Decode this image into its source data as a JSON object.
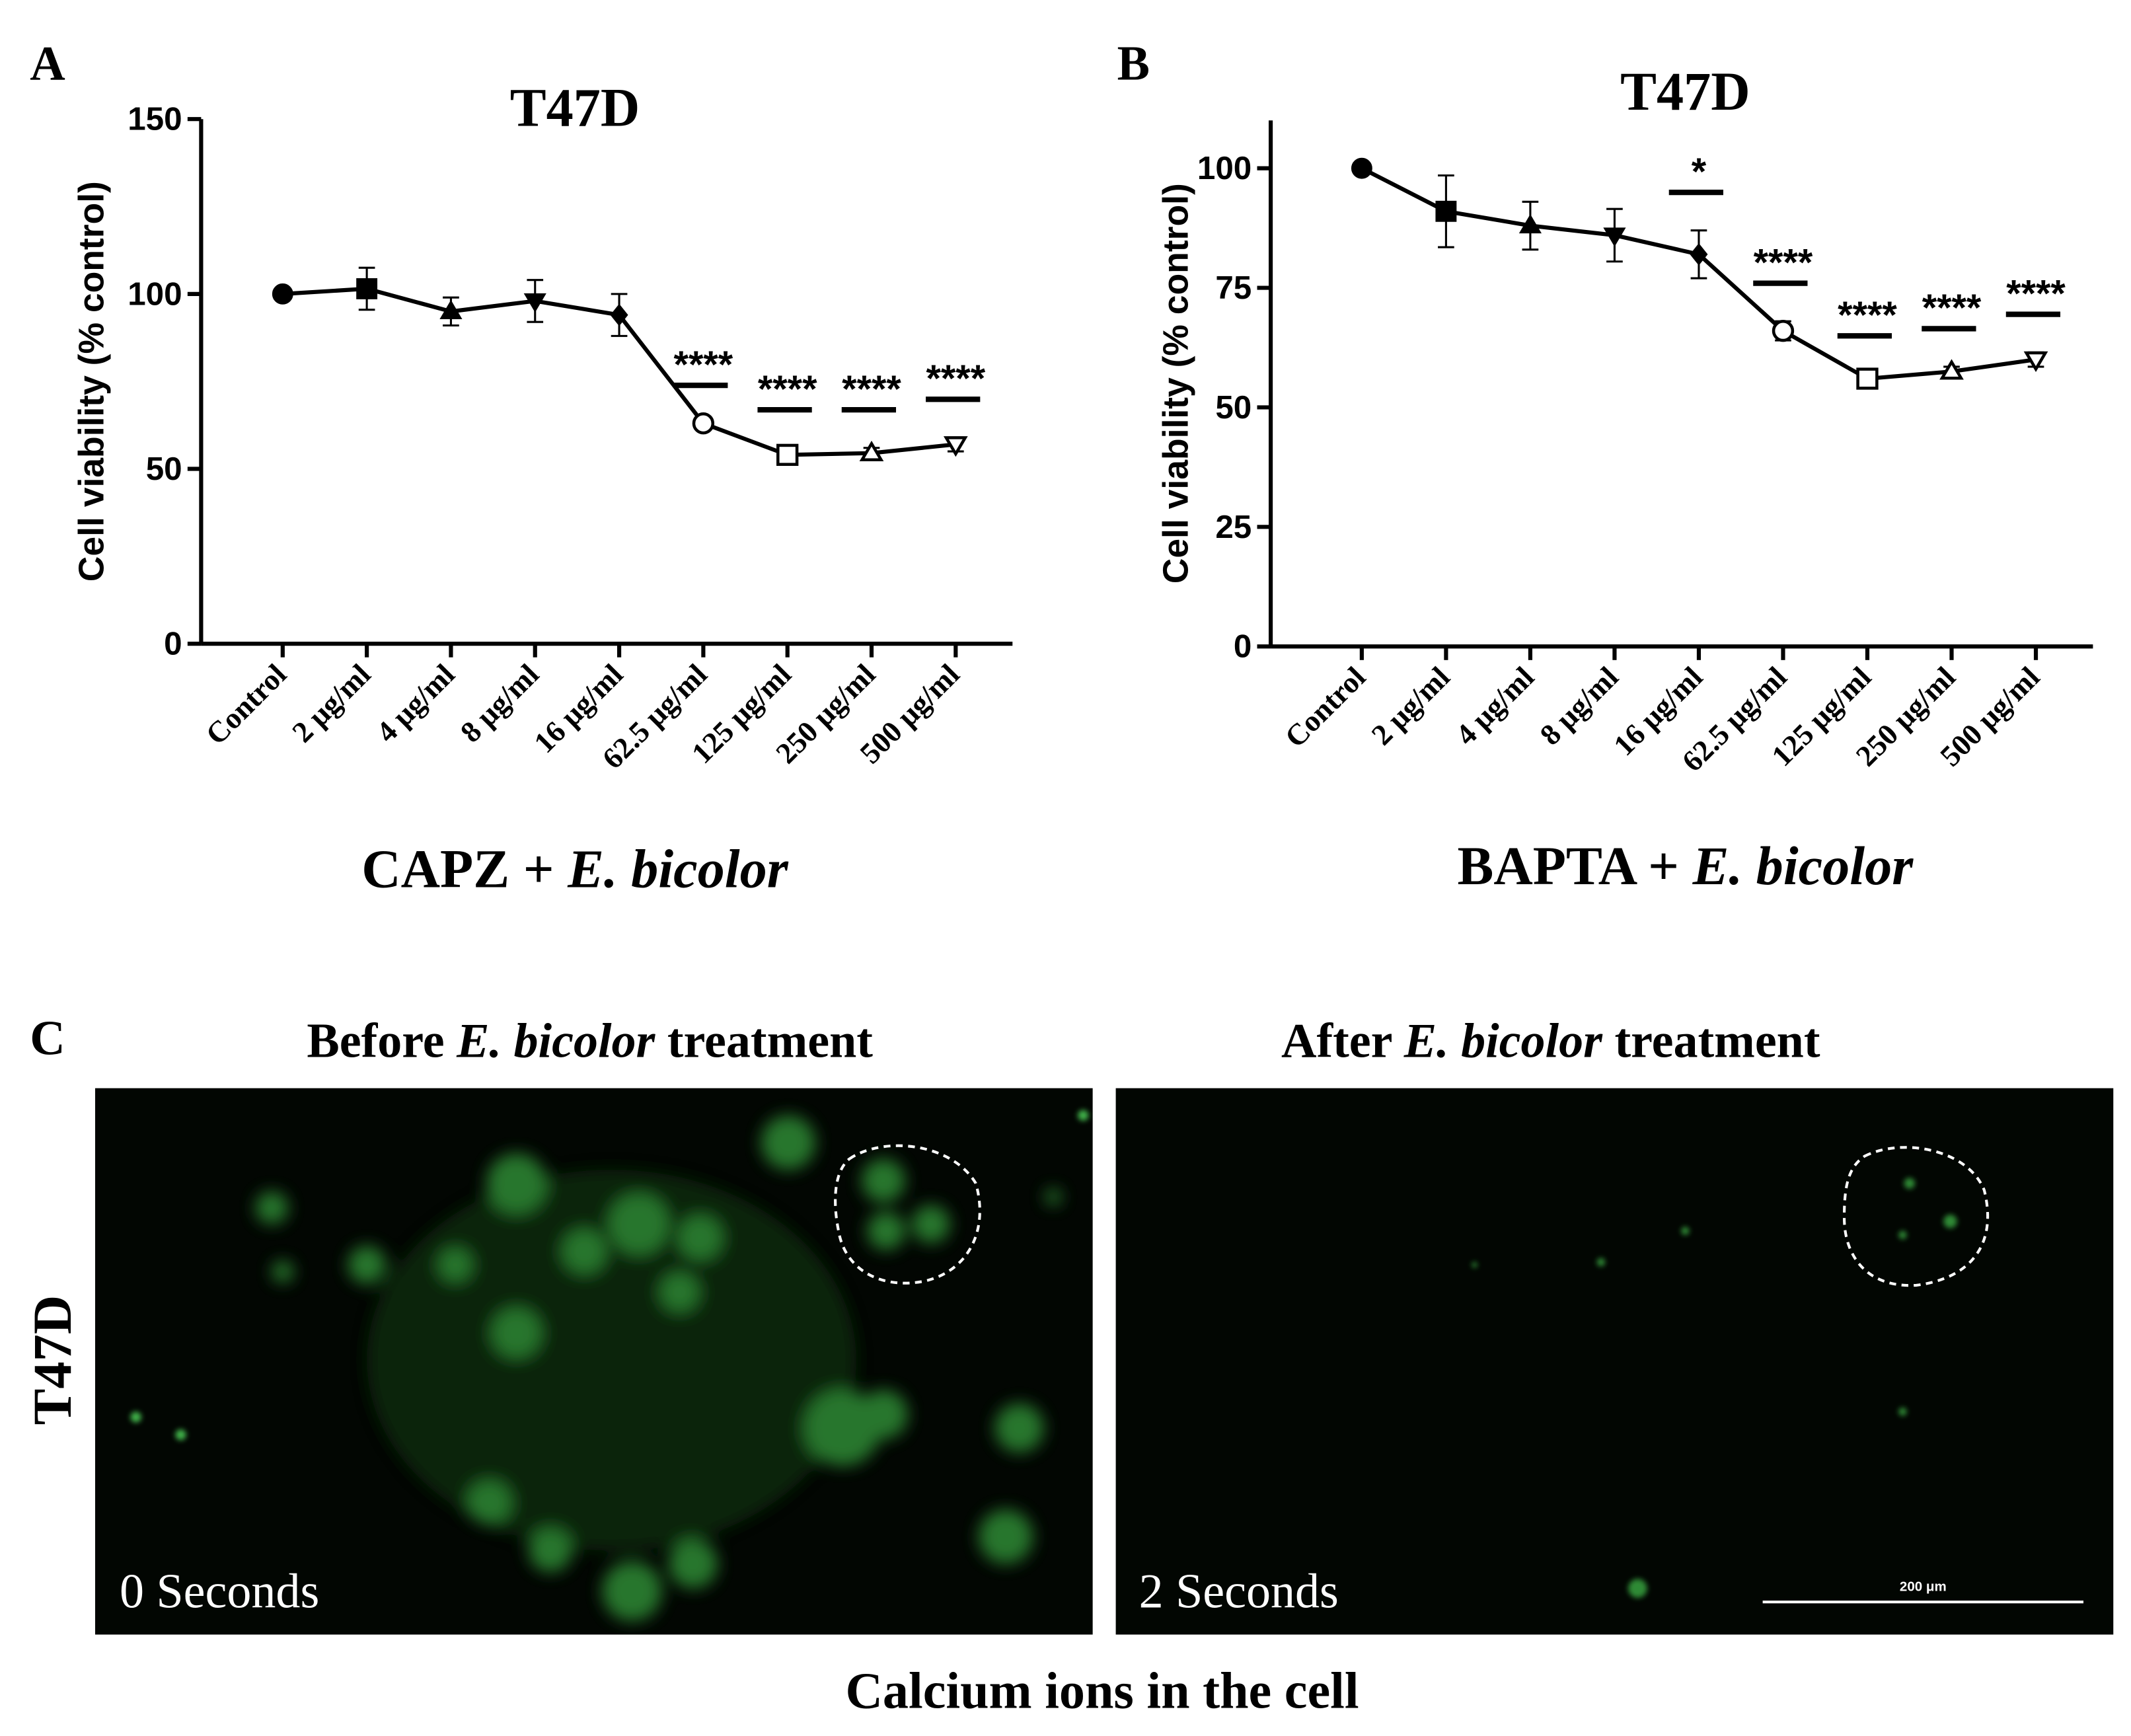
{
  "chart_data": [
    {
      "type": "line",
      "panel": "A",
      "title": "T47D",
      "ylabel": "Cell viability (% control)",
      "xlabel_parts": [
        "CAPZ + ",
        "E. bicolor"
      ],
      "categories": [
        "Control",
        "2 μg/ml",
        "4 μg/ml",
        "8 μg/ml",
        "16 μg/ml",
        "62.5 μg/ml",
        "125 μg/ml",
        "250 μg/ml",
        "500 μg/ml"
      ],
      "values": [
        100,
        101.5,
        95,
        98,
        94,
        63,
        54,
        54.5,
        57
      ],
      "errors": [
        0,
        6,
        4,
        6,
        6,
        0,
        2,
        1.5,
        2
      ],
      "significance": [
        null,
        null,
        null,
        null,
        null,
        "****",
        "****",
        "****",
        "****"
      ],
      "markers": [
        "circle-filled",
        "square-filled",
        "triangle-filled",
        "triangle-down-filled",
        "diamond-filled",
        "circle-open",
        "square-open",
        "triangle-open",
        "triangle-down-open"
      ],
      "color": "#000000",
      "ylim": [
        0,
        150
      ],
      "yticks": [
        0,
        50,
        100,
        150
      ]
    },
    {
      "type": "line",
      "panel": "B",
      "title": "T47D",
      "ylabel": "Cell viability (% control)",
      "xlabel_parts": [
        "BAPTA + ",
        "E. bicolor"
      ],
      "categories": [
        "Control",
        "2 μg/ml",
        "4 μg/ml",
        "8 μg/ml",
        "16 μg/ml",
        "62.5 μg/ml",
        "125 μg/ml",
        "250 μg/ml",
        "500 μg/ml"
      ],
      "values": [
        100,
        91,
        88,
        86,
        82,
        66,
        56,
        57.5,
        60
      ],
      "errors": [
        0,
        7.5,
        5,
        5.5,
        5,
        2,
        1,
        1,
        1.5
      ],
      "significance": [
        null,
        null,
        null,
        null,
        "*",
        "****",
        "****",
        "****",
        "****"
      ],
      "markers": [
        "circle-filled",
        "square-filled",
        "triangle-filled",
        "triangle-down-filled",
        "diamond-filled",
        "circle-open",
        "square-open",
        "triangle-open",
        "triangle-down-open"
      ],
      "color": "#000000",
      "ylim": [
        0,
        110
      ],
      "yticks": [
        0,
        25,
        50,
        75,
        100
      ]
    }
  ],
  "panel_c": {
    "letter": "C",
    "row_label": "T47D",
    "before_parts": [
      "Before ",
      "E. bicolor",
      " treatment"
    ],
    "after_parts": [
      "After ",
      "E. bicolor",
      " treatment"
    ],
    "before_time": "0 Seconds",
    "after_time": "2 Seconds",
    "scale_bar": "200 μm",
    "caption": "Calcium ions in the cell"
  }
}
